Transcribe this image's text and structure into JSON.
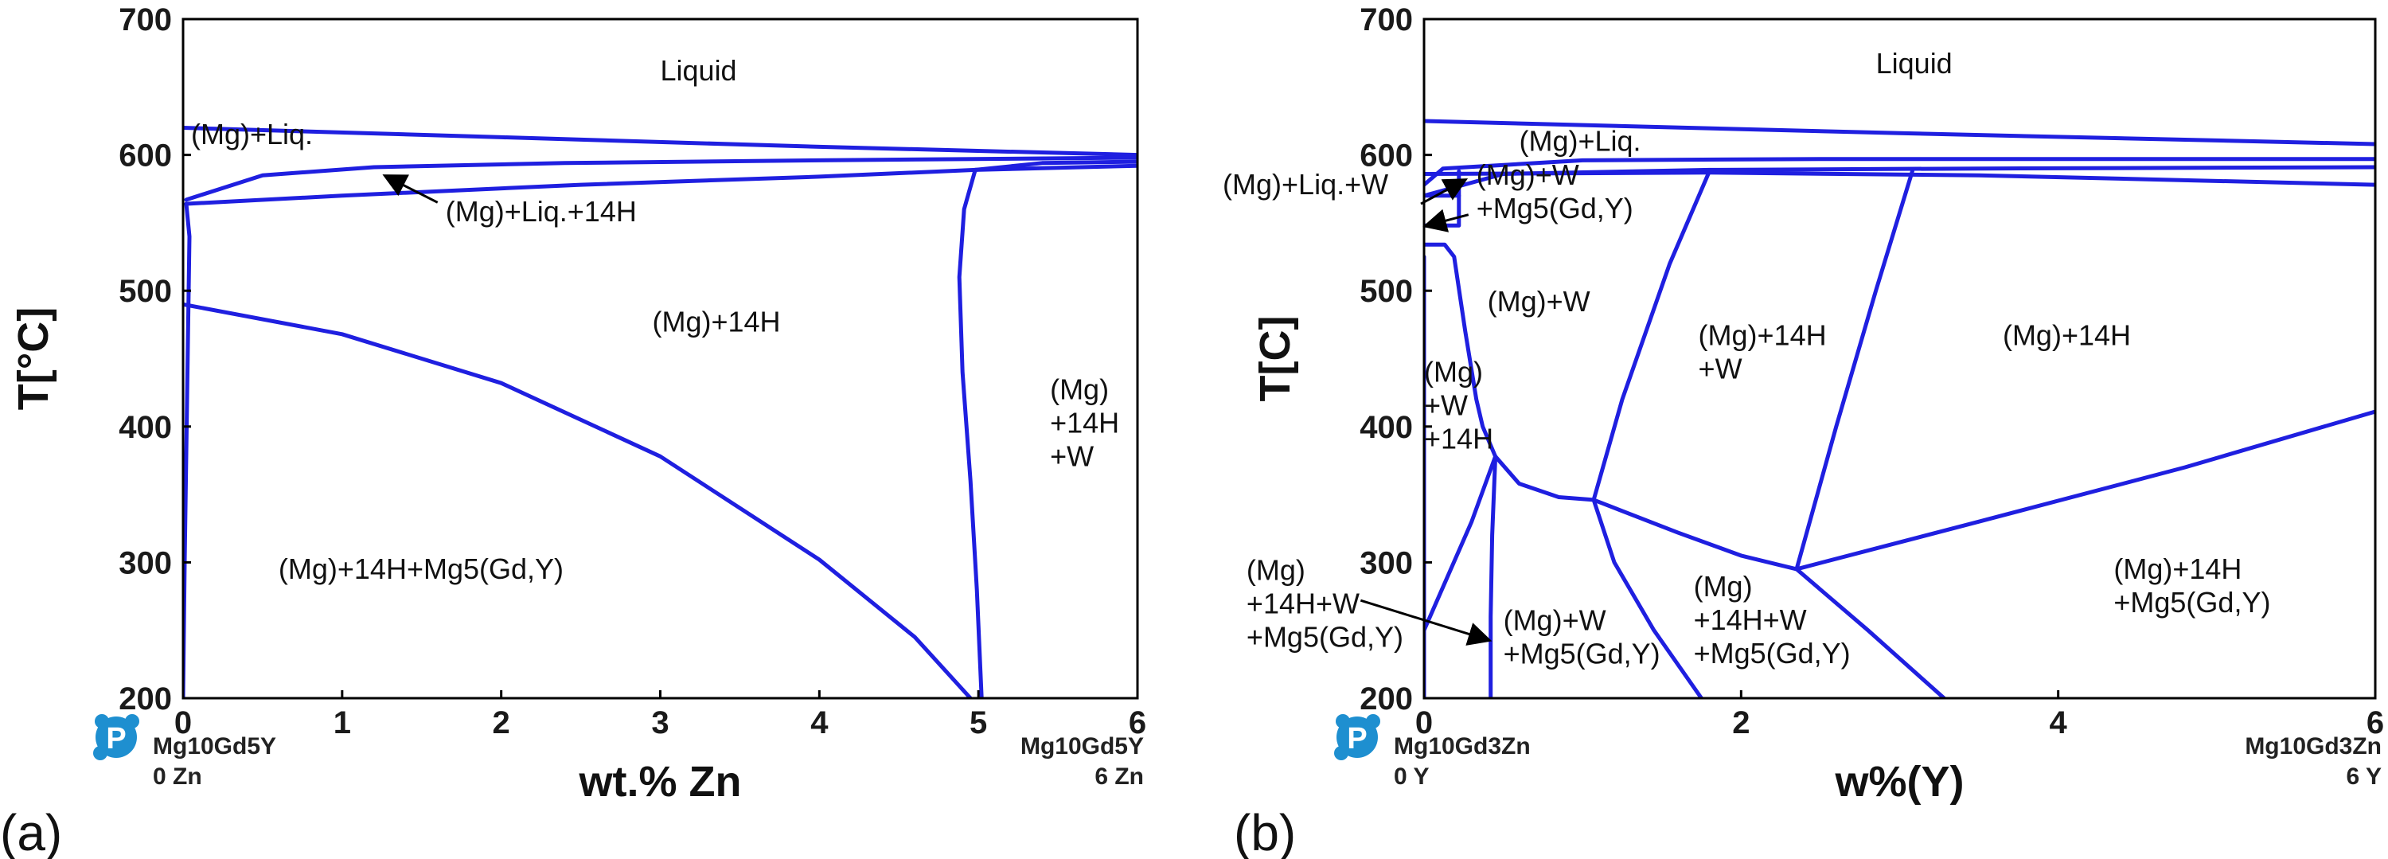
{
  "colors": {
    "phase_boundary": "#1f1fe0",
    "logo": "#1e8fd0",
    "frame": "#000000"
  },
  "icon": "p-logo-icon",
  "chart_data": [
    {
      "type": "line",
      "panel_label": "(a)",
      "title": "",
      "xlabel": "wt.% Zn",
      "ylabel": "T[°C]",
      "xlim": [
        0,
        6
      ],
      "ylim": [
        200,
        700
      ],
      "xticks": [
        "0",
        "1",
        "2",
        "3",
        "4",
        "5",
        "6"
      ],
      "yticks": [
        "200",
        "300",
        "400",
        "500",
        "600",
        "700"
      ],
      "grid": false,
      "corner_left": [
        "Mg10Gd5Y",
        "0 Zn"
      ],
      "corner_right": [
        "Mg10Gd5Y",
        "6 Zn"
      ],
      "region_labels": [
        {
          "text": [
            "Liquid"
          ],
          "x": 3.0,
          "y": 655
        },
        {
          "text": [
            "(Mg)+Liq."
          ],
          "x": 0.05,
          "y": 608
        },
        {
          "text": [
            "(Mg)+Liq.+14H"
          ],
          "x": 1.65,
          "y": 551
        },
        {
          "text": [
            "(Mg)+14H"
          ],
          "x": 2.95,
          "y": 470
        },
        {
          "text": [
            "(Mg)",
            "+14H",
            "+W"
          ],
          "x": 5.45,
          "y": 420
        },
        {
          "text": [
            "(Mg)+14H+Mg5(Gd,Y)"
          ],
          "x": 0.6,
          "y": 288
        }
      ],
      "annotations": [
        {
          "from": [
            1.6,
            565
          ],
          "to": [
            1.28,
            584
          ]
        }
      ],
      "series": [
        {
          "points": [
            [
              0,
              620
            ],
            [
              2,
              613
            ],
            [
              4,
              606
            ],
            [
              6,
              600
            ]
          ]
        },
        {
          "points": [
            [
              0.02,
              567
            ],
            [
              0.5,
              585
            ],
            [
              1.2,
              591
            ],
            [
              2.4,
              594
            ],
            [
              4,
              596
            ],
            [
              6,
              598
            ]
          ]
        },
        {
          "points": [
            [
              0.02,
              564
            ],
            [
              1,
              570
            ],
            [
              2.5,
              578
            ],
            [
              4,
              584
            ],
            [
              4.98,
              589
            ],
            [
              6,
              592
            ]
          ]
        },
        {
          "points": [
            [
              4.98,
              589
            ],
            [
              5.4,
              594
            ],
            [
              6,
              595
            ]
          ]
        },
        {
          "points": [
            [
              0.02,
              564
            ],
            [
              0.04,
              540
            ],
            [
              0.03,
              460
            ],
            [
              0.02,
              380
            ],
            [
              0.01,
              300
            ],
            [
              0.0,
              200
            ]
          ]
        },
        {
          "points": [
            [
              0,
              490
            ],
            [
              1,
              468
            ],
            [
              2,
              432
            ],
            [
              3,
              378
            ],
            [
              4,
              302
            ],
            [
              4.6,
              245
            ],
            [
              4.95,
              200
            ]
          ]
        },
        {
          "points": [
            [
              4.98,
              589
            ],
            [
              4.91,
              560
            ],
            [
              4.88,
              510
            ],
            [
              4.9,
              440
            ],
            [
              4.95,
              360
            ],
            [
              4.99,
              280
            ],
            [
              5.02,
              200
            ]
          ]
        }
      ]
    },
    {
      "type": "line",
      "panel_label": "(b)",
      "title": "",
      "xlabel": "w%(Y)",
      "ylabel": "T[C]",
      "xlim": [
        0,
        6
      ],
      "ylim": [
        200,
        700
      ],
      "xticks": [
        "0",
        "2",
        "4",
        "6"
      ],
      "yticks": [
        "200",
        "300",
        "400",
        "500",
        "600",
        "700"
      ],
      "grid": false,
      "corner_left": [
        "Mg10Gd3Zn",
        "0 Y"
      ],
      "corner_right": [
        "Mg10Gd3Zn",
        "6 Y"
      ],
      "region_labels": [
        {
          "text": [
            "Liquid"
          ],
          "x": 2.85,
          "y": 660
        },
        {
          "text": [
            "(Mg)+Liq."
          ],
          "x": 0.6,
          "y": 603
        },
        {
          "text": [
            "(Mg)+Liq.+W"
          ],
          "x": -1.27,
          "y": 571
        },
        {
          "text": [
            "(Mg)+W",
            "+Mg5(Gd,Y)"
          ],
          "x": 0.33,
          "y": 578
        },
        {
          "text": [
            "(Mg)+W"
          ],
          "x": 0.4,
          "y": 485
        },
        {
          "text": [
            "(Mg)",
            "+W",
            "+14H"
          ],
          "x": 0.0,
          "y": 433
        },
        {
          "text": [
            "(Mg)+14H",
            "+W"
          ],
          "x": 1.73,
          "y": 460
        },
        {
          "text": [
            "(Mg)+14H"
          ],
          "x": 3.65,
          "y": 460
        },
        {
          "text": [
            "(Mg)",
            "+14H+W",
            "+Mg5(Gd,Y)"
          ],
          "x": -1.12,
          "y": 287
        },
        {
          "text": [
            "(Mg)+W",
            "+Mg5(Gd,Y)"
          ],
          "x": 0.5,
          "y": 250
        },
        {
          "text": [
            "(Mg)",
            "+14H+W",
            "+Mg5(Gd,Y)"
          ],
          "x": 1.7,
          "y": 275
        },
        {
          "text": [
            "(Mg)+14H",
            "+Mg5(Gd,Y)"
          ],
          "x": 4.35,
          "y": 288
        }
      ],
      "annotations": [
        {
          "from": [
            -0.02,
            564
          ],
          "to": [
            0.25,
            581
          ]
        },
        {
          "from": [
            0.28,
            556
          ],
          "to": [
            0.02,
            548
          ]
        },
        {
          "from": [
            -0.4,
            272
          ],
          "to": [
            0.4,
            243
          ]
        }
      ],
      "series": [
        {
          "points": [
            [
              0,
              625
            ],
            [
              3,
              616
            ],
            [
              6,
              608
            ]
          ]
        },
        {
          "points": [
            [
              0,
              578
            ],
            [
              0.12,
              590
            ],
            [
              1,
              596
            ],
            [
              2.5,
              597
            ],
            [
              6,
              597
            ]
          ]
        },
        {
          "points": [
            [
              0,
              570
            ],
            [
              0.5,
              586
            ],
            [
              1.8,
              589
            ],
            [
              3.5,
              590
            ],
            [
              6,
              591
            ]
          ]
        },
        {
          "points": [
            [
              0,
              586
            ],
            [
              1.8,
              587
            ],
            [
              3.5,
              585
            ],
            [
              6,
              578
            ]
          ]
        },
        {
          "points": [
            [
              0,
              570
            ],
            [
              0.22,
              570
            ],
            [
              0.22,
              588
            ]
          ]
        },
        {
          "points": [
            [
              0,
              548
            ],
            [
              0.22,
              548
            ],
            [
              0.22,
              570
            ]
          ]
        },
        {
          "points": [
            [
              0,
              534
            ],
            [
              0.13,
              534
            ],
            [
              0.19,
              525
            ],
            [
              0.26,
              470
            ],
            [
              0.33,
              420
            ],
            [
              0.37,
              400
            ],
            [
              0.45,
              378
            ]
          ]
        },
        {
          "points": [
            [
              0.45,
              378
            ],
            [
              0.6,
              358
            ],
            [
              0.85,
              348
            ],
            [
              1.07,
              346
            ]
          ]
        },
        {
          "points": [
            [
              1.07,
              346
            ],
            [
              1.25,
              420
            ],
            [
              1.55,
              520
            ],
            [
              1.8,
              588
            ]
          ]
        },
        {
          "points": [
            [
              1.07,
              346
            ],
            [
              1.6,
              322
            ],
            [
              2.0,
              305
            ],
            [
              2.35,
              295
            ]
          ]
        },
        {
          "points": [
            [
              2.35,
              295
            ],
            [
              2.6,
              400
            ],
            [
              2.85,
              500
            ],
            [
              3.08,
              588
            ]
          ]
        },
        {
          "points": [
            [
              2.35,
              295
            ],
            [
              3.5,
              330
            ],
            [
              4.8,
              370
            ],
            [
              6,
              411
            ]
          ]
        },
        {
          "points": [
            [
              2.35,
              295
            ],
            [
              2.8,
              250
            ],
            [
              3.28,
              200
            ]
          ]
        },
        {
          "points": [
            [
              1.07,
              346
            ],
            [
              1.2,
              300
            ],
            [
              1.45,
              250
            ],
            [
              1.75,
              200
            ]
          ]
        },
        {
          "points": [
            [
              0.45,
              378
            ],
            [
              0.43,
              320
            ],
            [
              0.42,
              260
            ],
            [
              0.42,
              200
            ]
          ]
        },
        {
          "points": [
            [
              0.45,
              378
            ],
            [
              0.3,
              330
            ],
            [
              0.15,
              290
            ],
            [
              0.0,
              250
            ]
          ]
        },
        {
          "points": [
            [
              0.0,
              525
            ],
            [
              0.0,
              400
            ],
            [
              0.0,
              200
            ]
          ]
        }
      ]
    }
  ]
}
